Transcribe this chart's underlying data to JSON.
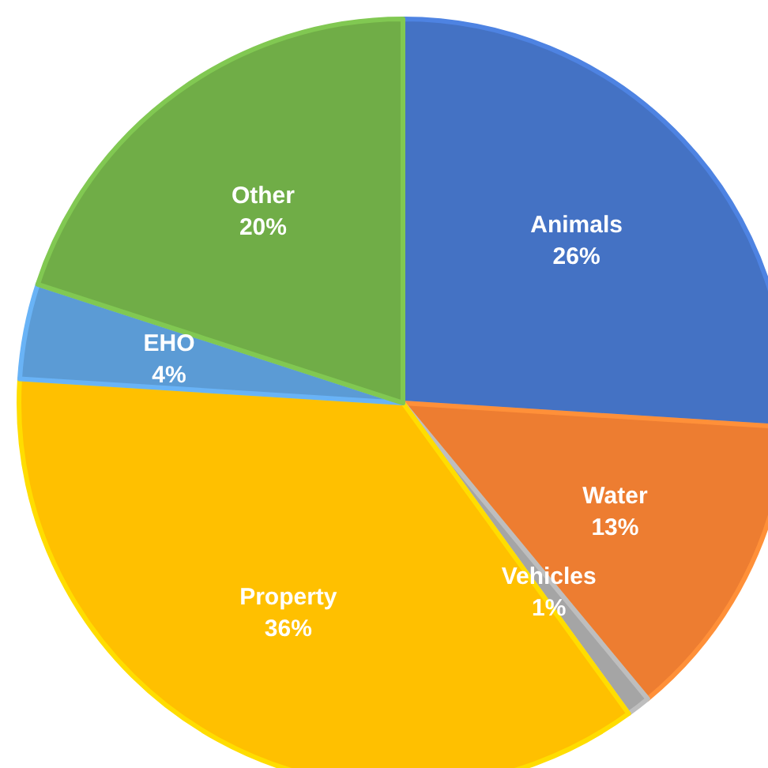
{
  "chart_data": {
    "type": "pie",
    "categories": [
      "Animals",
      "Water",
      "Vehicles",
      "Property",
      "EHO",
      "Other"
    ],
    "values": [
      26,
      13,
      1,
      36,
      4,
      20
    ],
    "colors": [
      "#4472c4",
      "#ed7d31",
      "#a5a5a5",
      "#ffc000",
      "#5b9bd5",
      "#70ad47"
    ],
    "value_labels": [
      "26%",
      "13%",
      "1%",
      "36%",
      "4%",
      "20%"
    ]
  }
}
